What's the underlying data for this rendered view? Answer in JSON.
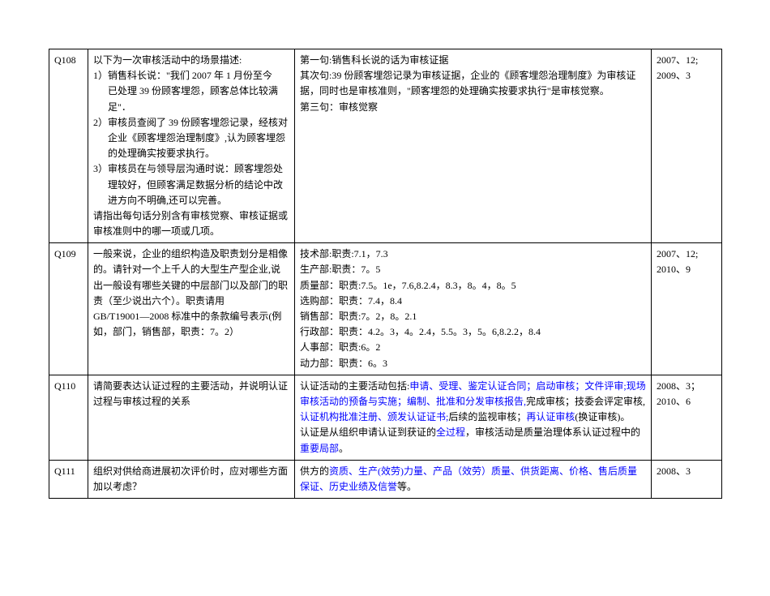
{
  "table": {
    "rows": [
      {
        "id": "Q108",
        "question": {
          "intro": "以下为一次审核活动中的场景描述:",
          "items": [
            {
              "num": "1）",
              "lines": [
                "销售科长说：\"我们 2007 年 1 月份至今",
                "已处理 39 份顾客埋怨，顾客总体比较满足\"．"
              ]
            },
            {
              "num": "2）",
              "lines": [
                "审核员查阅了 39 份顾客埋怨记录，经核对企业《顾客埋怨治理制度》,认为顾客埋怨的处理确实按要求执行。"
              ]
            },
            {
              "num": "3）",
              "lines": [
                "审核员在与领导层沟通时说：顾客埋怨处理较好，但顾客满足数据分析的结论中改进方向不明确,还可以完善。"
              ]
            }
          ],
          "tail": "请指出每句话分别含有审核觉察、审核证据或审核准则中的哪一项或几项。"
        },
        "answer": {
          "plain": [
            "第一句:销售科长说的话为审核证据",
            "其次句:39 份顾客埋怨记录为审核证据，企业的《顾客埋怨治理制度》为审核证据，同时也是审核准则，\"顾客埋怨的处理确实按要求执行\"是审核觉察。",
            "第三句：审核觉察"
          ]
        },
        "year": "2007、12; 2009、3"
      },
      {
        "id": "Q109",
        "question": {
          "plain": "一般来说，企业的组织构造及职责划分是相像的。请针对一个上千人的大型生产型企业,说出一般设有哪些关键的中层部门以及部门的职责（至少说出六个）。职责请用GB/T19001―2008  标准中的条款编号表示(例如，部门，销售部，职责：7。2）"
        },
        "answer": {
          "plain": [
            "技术部:职责:7.1，7.3",
            "生产部:职责：7。5",
            "质量部：职责:7.5。1e，7.6,8.2.4，8.3，8。4，8。5",
            "选购部：职责：7.4，8.4",
            "销售部：职责:7。2，8。2.1",
            "行政部：职责：4.2。3，4。2.4，5.5。3，5。6,8.2.2，8.4",
            "人事部：职责:6。2",
            "动力部：职责：6。3"
          ]
        },
        "year": "2007、12; 2010、9"
      },
      {
        "id": "Q110",
        "question": {
          "plain": "请简要表达认证过程的主要活动，并说明认证过程与审核过程的关系"
        },
        "answer": {
          "rich": [
            [
              {
                "t": "认证活动的主要活动包括:"
              },
              {
                "t": "申请、受理、鉴定认证合同；启动审核；文件评审;",
                "c": "link"
              },
              {
                "t": "现场审核活动的预备与实施；编制、批准和分发审核报告,",
                "c": "link"
              },
              {
                "t": "完成审核；技委会评定审核,"
              },
              {
                "t": "认证机构批准注册、颁发认证证书;",
                "c": "link"
              },
              {
                "t": "后续的监视审核；"
              },
              {
                "t": "再认证审核",
                "c": "link"
              },
              {
                "t": "(换证审核)。"
              }
            ],
            [
              {
                "t": "认证是从组织申请认证到获证的"
              },
              {
                "t": "全过程",
                "c": "link"
              },
              {
                "t": "，审核活动是质量治理体系认证过程中的"
              },
              {
                "t": "重要局部",
                "c": "link"
              },
              {
                "t": "。"
              }
            ]
          ]
        },
        "year": "2008、3；2010、6"
      },
      {
        "id": "Q111",
        "question": {
          "plain": "组织对供给商进展初次评价时，应对哪些方面加以考虑？"
        },
        "answer": {
          "rich": [
            [
              {
                "t": "供方的"
              },
              {
                "t": "资质、生产(效劳)力量、产品（效劳）质量、供货距离、价格、售后质量保证、历史业绩及信誉",
                "c": "link"
              },
              {
                "t": "等。"
              }
            ]
          ]
        },
        "year": "2008、3"
      }
    ]
  }
}
